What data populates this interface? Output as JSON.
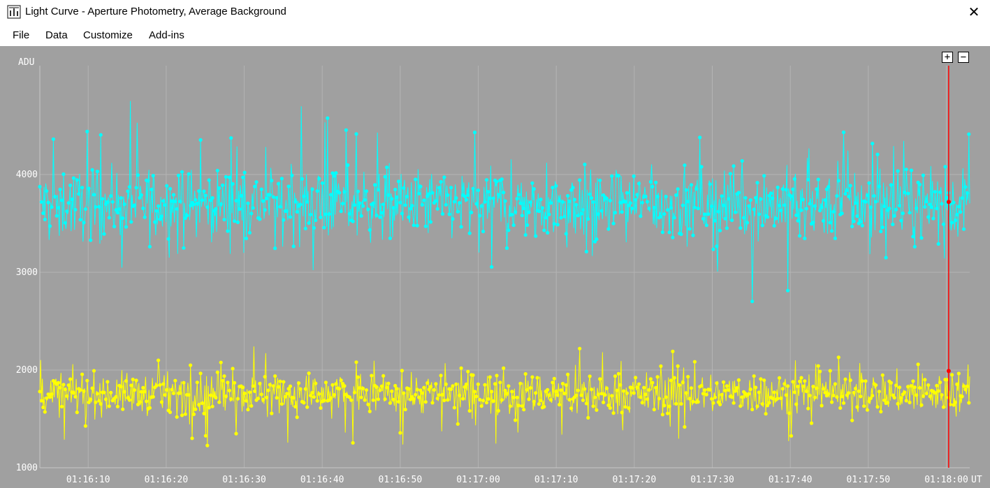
{
  "window": {
    "title": "Light Curve - Aperture Photometry, Average Background",
    "close_glyph": "✕"
  },
  "menu": {
    "items": [
      "File",
      "Data",
      "Customize",
      "Add-ins"
    ]
  },
  "zoom": {
    "plus": "+",
    "minus": "−"
  },
  "chart_data": {
    "type": "line",
    "ylabel": "ADU",
    "xlabel": "UT",
    "y_ticks": [
      1000,
      2000,
      3000,
      4000
    ],
    "x_ticks": [
      "01:16:10",
      "01:16:20",
      "01:16:30",
      "01:16:40",
      "01:16:50",
      "01:17:00",
      "01:17:10",
      "01:17:20",
      "01:17:30",
      "01:17:40",
      "01:17:50",
      "01:18:00"
    ],
    "x_range_seconds_after_01_16_00": [
      3.8,
      123.0
    ],
    "ylim": [
      1000,
      4900
    ],
    "grid": true,
    "cursor": {
      "time": "01:18:00.3",
      "values": [
        3720,
        1990
      ],
      "color": "#ff0000"
    },
    "background": "#a0a0a0",
    "series": [
      {
        "color": "#00ffff",
        "mean": 3700,
        "spread": 320,
        "min": 2690,
        "max": 4780,
        "n": 1100
      },
      {
        "color": "#ffff00",
        "mean": 1760,
        "spread": 190,
        "min": 1120,
        "max": 2360,
        "n": 1100
      }
    ]
  }
}
